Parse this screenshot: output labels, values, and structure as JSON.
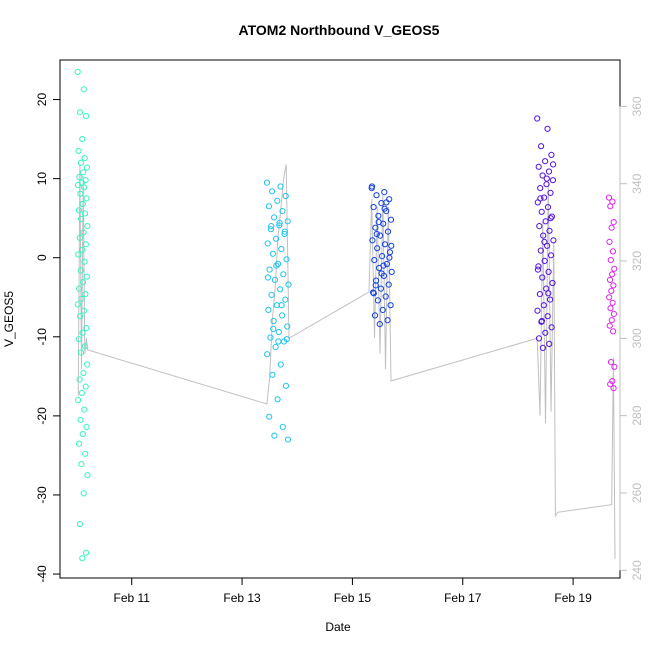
{
  "chart_data": {
    "type": "scatter",
    "title": "ATOM2 Northbound V_GEOS5",
    "xlabel": "Date",
    "ylabel": "V_GEOS5",
    "xlim": [
      9.7,
      19.85
    ],
    "ylim": [
      -40.5,
      25
    ],
    "y2lim": [
      238,
      372
    ],
    "x_ticks": [
      {
        "value": 11,
        "label": "Feb 11"
      },
      {
        "value": 13,
        "label": "Feb 13"
      },
      {
        "value": 15,
        "label": "Feb 15"
      },
      {
        "value": 17,
        "label": "Feb 17"
      },
      {
        "value": 19,
        "label": "Feb 19"
      }
    ],
    "y_ticks": [
      20,
      10,
      0,
      -10,
      -20,
      -30,
      -40
    ],
    "y2_ticks": [
      360,
      340,
      320,
      300,
      280,
      260,
      240
    ],
    "point_groups": [
      {
        "x_start": 10.02,
        "x_end": 10.2,
        "color": "#36f5c5",
        "values": [
          23.5,
          21.3,
          18.4,
          17.9,
          15.0,
          13.5,
          12.6,
          12.0,
          11.4,
          10.8,
          10.2,
          9.8,
          9.5,
          9.2,
          8.9,
          8.1,
          7.5,
          6.8,
          6.0,
          5.6,
          4.9,
          4.0,
          3.2,
          2.5,
          1.7,
          1.0,
          0.4,
          -0.5,
          -1.6,
          -2.4,
          -3.1,
          -3.9,
          -4.6,
          -5.2,
          -5.9,
          -6.7,
          -7.4,
          -8.9,
          -9.5,
          -10.3,
          -11.2,
          -12.0,
          -13.5,
          -14.6,
          -15.4,
          -16.3,
          -17.1,
          -18.0,
          -19.2,
          -20.5,
          -21.4,
          -22.3,
          -23.5,
          -24.8,
          -26.1,
          -27.5,
          -29.8,
          -33.7,
          -37.3,
          -38.0
        ]
      },
      {
        "x_start": 13.45,
        "x_end": 13.85,
        "color": "#21c3f0",
        "values": [
          9.5,
          9.0,
          8.4,
          7.8,
          7.2,
          6.5,
          5.9,
          5.1,
          4.6,
          4.1,
          3.6,
          3.0,
          2.4,
          1.8,
          1.1,
          0.5,
          -0.2,
          -0.8,
          -1.5,
          -2.1,
          -2.8,
          -3.4,
          -4.0,
          -4.7,
          -5.3,
          -6.0,
          -6.6,
          -7.3,
          -8.0,
          -8.7,
          -9.4,
          -10.1,
          -10.6,
          -11.3,
          -12.2,
          -13.5,
          -14.8,
          -16.2,
          -17.9,
          -20.1,
          -21.4,
          -22.5,
          -23.0,
          4.4,
          4.0,
          3.3,
          -1.0,
          -2.5,
          -6.0,
          -9.0,
          -10.3,
          -10.6
        ]
      },
      {
        "x_start": 15.35,
        "x_end": 15.72,
        "color": "#1240e6",
        "values": [
          8.8,
          8.3,
          7.9,
          7.4,
          6.9,
          6.4,
          5.9,
          5.3,
          4.8,
          4.3,
          3.8,
          3.3,
          2.8,
          2.2,
          1.7,
          1.2,
          0.7,
          0.2,
          -0.3,
          -0.8,
          -1.3,
          -1.8,
          -2.3,
          -2.9,
          -3.4,
          -3.9,
          -4.4,
          -4.9,
          -5.4,
          -6.0,
          -6.6,
          -7.3,
          -7.9,
          -8.4,
          9.0,
          6.2,
          3.0,
          0.0,
          -2.0,
          -4.5,
          7.0,
          4.5,
          1.5,
          -1.0,
          -3.5
        ]
      },
      {
        "x_start": 18.35,
        "x_end": 18.65,
        "color": "#5513e2",
        "values": [
          17.6,
          16.3,
          14.1,
          13.0,
          12.2,
          11.5,
          10.9,
          10.4,
          9.8,
          9.3,
          8.8,
          8.2,
          7.6,
          7.0,
          6.4,
          5.8,
          5.2,
          4.6,
          4.0,
          3.4,
          2.8,
          2.2,
          1.5,
          0.9,
          0.3,
          -0.4,
          -1.1,
          -1.8,
          -2.5,
          -3.2,
          -3.9,
          -4.6,
          -5.3,
          -6.0,
          -6.7,
          -7.4,
          -8.1,
          -8.8,
          -9.5,
          -10.2,
          -10.9,
          -11.4,
          11.8,
          10.0,
          7.5,
          5.0,
          2.0,
          -1.5,
          -4.5,
          -8.0
        ]
      },
      {
        "x_start": 19.65,
        "x_end": 19.75,
        "color": "#e026ee",
        "values": [
          7.6,
          7.1,
          6.5,
          4.5,
          3.8,
          2.0,
          0.8,
          -0.3,
          -1.4,
          -2.1,
          -2.8,
          -3.5,
          -4.2,
          -5.0,
          -5.7,
          -6.4,
          -7.1,
          -7.9,
          -8.6,
          -9.3,
          -13.2,
          -13.8,
          -15.6,
          -16.0,
          -16.5
        ]
      }
    ],
    "line_series": {
      "name": "secondary axis trace",
      "color": "#c0c0c0",
      "points": [
        [
          10.03,
          285
        ],
        [
          10.06,
          345
        ],
        [
          10.09,
          292
        ],
        [
          10.12,
          342
        ],
        [
          10.15,
          296
        ],
        [
          10.18,
          300
        ],
        [
          10.2,
          297
        ],
        [
          13.45,
          283
        ],
        [
          13.5,
          290
        ],
        [
          13.55,
          305
        ],
        [
          13.6,
          313
        ],
        [
          13.65,
          326
        ],
        [
          13.7,
          333
        ],
        [
          13.75,
          341
        ],
        [
          13.8,
          345
        ],
        [
          13.85,
          300
        ],
        [
          15.3,
          312
        ],
        [
          15.35,
          336
        ],
        [
          15.4,
          300
        ],
        [
          15.45,
          334
        ],
        [
          15.5,
          296
        ],
        [
          15.55,
          337
        ],
        [
          15.6,
          292
        ],
        [
          15.65,
          334
        ],
        [
          15.7,
          289
        ],
        [
          18.35,
          300
        ],
        [
          18.4,
          280
        ],
        [
          18.45,
          330
        ],
        [
          18.5,
          278
        ],
        [
          18.55,
          340
        ],
        [
          18.6,
          281
        ],
        [
          18.65,
          325
        ],
        [
          18.68,
          254
        ],
        [
          18.72,
          255
        ],
        [
          19.7,
          257
        ],
        [
          19.73,
          295
        ],
        [
          19.76,
          243
        ]
      ]
    }
  }
}
